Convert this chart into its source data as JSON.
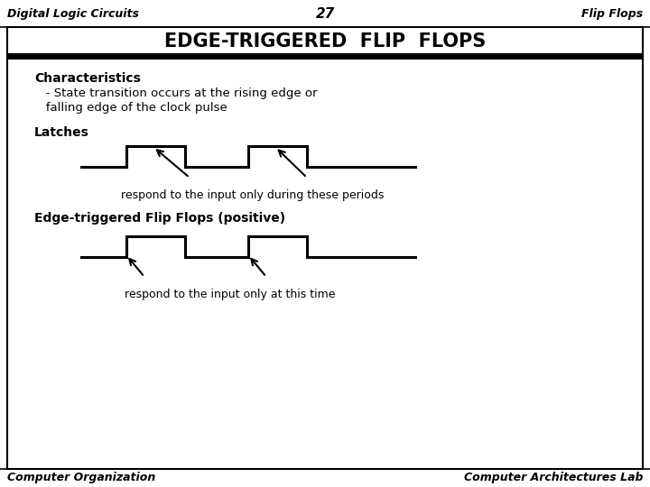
{
  "title": "EDGE-TRIGGERED  FLIP  FLOPS",
  "header_left": "Digital Logic Circuits",
  "header_center": "27",
  "header_right": "Flip Flops",
  "footer_left": "Computer Organization",
  "footer_right": "Computer Architectures Lab",
  "bg_color": "#ffffff",
  "characteristics_line1": "Characteristics",
  "characteristics_line2": "   - State transition occurs at the rising edge or",
  "characteristics_line3": "   falling edge of the clock pulse",
  "latches_label": "Latches",
  "latches_caption": "respond to the input only during these periods",
  "edge_label": "Edge-triggered Flip Flops (positive)",
  "edge_caption": "respond to the input only at this time"
}
